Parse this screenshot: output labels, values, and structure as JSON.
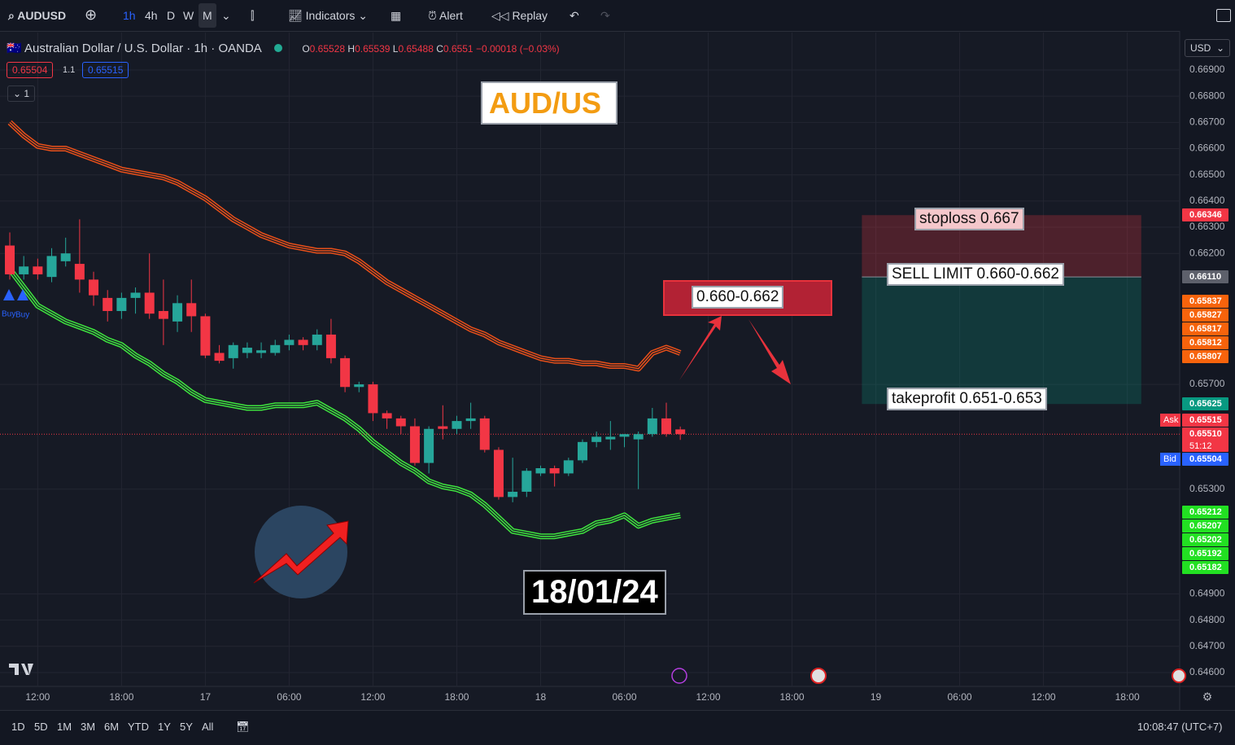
{
  "toolbar": {
    "symbol": "AUDUSD",
    "intervals": [
      "1h",
      "4h",
      "D",
      "W",
      "M"
    ],
    "indicators": "Indicators",
    "alert": "Alert",
    "replay": "Replay"
  },
  "legend": {
    "title": "Australian Dollar / U.S. Dollar · 1h · OANDA",
    "o": "O",
    "h": "H",
    "l": "L",
    "c": "C",
    "change": "−0.00018 (−0.03%)",
    "sell": "0.65504",
    "spread": "1.1",
    "buy": "0.65515",
    "collapse": "1",
    "signal_a": "Buy",
    "signal_b": "Buy"
  },
  "currency": "USD",
  "annotations": {
    "title": "AUD/US",
    "zone": "0.660-0.662",
    "stoploss": "stoploss 0.667",
    "sell_limit": "SELL LIMIT 0.660-0.662",
    "takeprofit": "takeprofit 0.651-0.653",
    "date": "18/01/24"
  },
  "price_tags": [
    {
      "text": "0.66346",
      "color": "#f23645"
    },
    {
      "text": "0.66110",
      "color": "#5d606b"
    },
    {
      "text": "0.65837",
      "color": "#f7630c"
    },
    {
      "text": "0.65827",
      "color": "#f7630c"
    },
    {
      "text": "0.65817",
      "color": "#f7630c"
    },
    {
      "text": "0.65812",
      "color": "#f7630c"
    },
    {
      "text": "0.65807",
      "color": "#f7630c"
    },
    {
      "text": "0.65625",
      "color": "#089981"
    },
    {
      "text": "0.65515",
      "color": "#f23645"
    },
    {
      "text": "0.65510",
      "color": "#f23645"
    },
    {
      "text": "0.65504",
      "color": "#2962ff"
    },
    {
      "text": "0.65212",
      "color": "#22e022"
    },
    {
      "text": "0.65207",
      "color": "#22e022"
    },
    {
      "text": "0.65202",
      "color": "#22e022"
    },
    {
      "text": "0.65192",
      "color": "#22e022"
    },
    {
      "text": "0.65182",
      "color": "#22e022"
    }
  ],
  "tag_labels": {
    "ask": "Ask",
    "bid": "Bid",
    "countdown": "51:12"
  },
  "bottom": {
    "ranges": [
      "1D",
      "5D",
      "1M",
      "3M",
      "6M",
      "YTD",
      "1Y",
      "5Y",
      "All"
    ],
    "clock": "10:08:47 (UTC+7)"
  },
  "chart_data": {
    "type": "candlestick",
    "up_color": "#26a69a",
    "down_color": "#f23645",
    "x": [
      0,
      1,
      2,
      3,
      4,
      5,
      6,
      7,
      8,
      9,
      10,
      11,
      12,
      13,
      14,
      15,
      16,
      17,
      18,
      19,
      20,
      21,
      22,
      23,
      24,
      25,
      26,
      27,
      28,
      29,
      30,
      31,
      32,
      33,
      34,
      35,
      36,
      37,
      38,
      39,
      40,
      41,
      42,
      43,
      44,
      45,
      46,
      47,
      48
    ],
    "open": [
      0.6623,
      0.6612,
      0.6615,
      0.6611,
      0.6617,
      0.6616,
      0.661,
      0.6603,
      0.6598,
      0.6603,
      0.6605,
      0.6598,
      0.6594,
      0.6601,
      0.6596,
      0.6582,
      0.658,
      0.6582,
      0.6582,
      0.6582,
      0.6585,
      0.6587,
      0.6585,
      0.6589,
      0.658,
      0.6569,
      0.657,
      0.6559,
      0.6557,
      0.6554,
      0.654,
      0.6554,
      0.6553,
      0.6556,
      0.6557,
      0.6545,
      0.6527,
      0.6529,
      0.6536,
      0.6538,
      0.6536,
      0.6541,
      0.6548,
      0.6549,
      0.655,
      0.6549,
      0.6551,
      0.6557,
      0.65528
    ],
    "high": [
      0.6628,
      0.6619,
      0.6618,
      0.6622,
      0.6626,
      0.6633,
      0.6613,
      0.6606,
      0.6605,
      0.6607,
      0.662,
      0.661,
      0.6604,
      0.661,
      0.6597,
      0.6585,
      0.6586,
      0.6586,
      0.6586,
      0.6587,
      0.6589,
      0.6588,
      0.6591,
      0.6595,
      0.6581,
      0.6571,
      0.6571,
      0.656,
      0.6558,
      0.6557,
      0.6554,
      0.6562,
      0.6558,
      0.6563,
      0.6558,
      0.6546,
      0.6542,
      0.6538,
      0.6539,
      0.6539,
      0.6542,
      0.6549,
      0.6552,
      0.6556,
      0.6551,
      0.6552,
      0.6561,
      0.6563,
      0.65539
    ],
    "low": [
      0.661,
      0.661,
      0.661,
      0.6609,
      0.6615,
      0.6605,
      0.66,
      0.6594,
      0.6595,
      0.6597,
      0.6595,
      0.6585,
      0.659,
      0.659,
      0.658,
      0.6578,
      0.6576,
      0.658,
      0.658,
      0.6581,
      0.6583,
      0.6583,
      0.6583,
      0.6578,
      0.6567,
      0.6567,
      0.6556,
      0.6553,
      0.6551,
      0.6539,
      0.6536,
      0.6549,
      0.6551,
      0.6553,
      0.6544,
      0.6526,
      0.6525,
      0.6527,
      0.6535,
      0.6531,
      0.6535,
      0.654,
      0.6546,
      0.6545,
      0.6546,
      0.653,
      0.655,
      0.655,
      0.65488
    ],
    "close": [
      0.6612,
      0.6615,
      0.6612,
      0.6619,
      0.662,
      0.661,
      0.6604,
      0.6598,
      0.6603,
      0.6605,
      0.6597,
      0.6595,
      0.6601,
      0.6596,
      0.6581,
      0.6579,
      0.6585,
      0.6584,
      0.6583,
      0.6585,
      0.6587,
      0.6585,
      0.6589,
      0.658,
      0.6569,
      0.657,
      0.6559,
      0.6557,
      0.6554,
      0.654,
      0.6553,
      0.6553,
      0.6556,
      0.6557,
      0.6545,
      0.6527,
      0.6529,
      0.6537,
      0.6538,
      0.6536,
      0.6541,
      0.6548,
      0.655,
      0.655,
      0.6551,
      0.6551,
      0.6557,
      0.6551,
      0.6551
    ],
    "lines": [
      {
        "color": "#e8501a",
        "values": [
          0.667,
          0.6665,
          0.6661,
          0.666,
          0.666,
          0.6658,
          0.6656,
          0.6654,
          0.6652,
          0.6651,
          0.665,
          0.6649,
          0.6647,
          0.6644,
          0.6641,
          0.6637,
          0.6633,
          0.663,
          0.6627,
          0.6625,
          0.6623,
          0.6622,
          0.6621,
          0.6621,
          0.662,
          0.6617,
          0.6613,
          0.6609,
          0.6606,
          0.6603,
          0.66,
          0.6597,
          0.6594,
          0.6591,
          0.6589,
          0.6586,
          0.6584,
          0.6582,
          0.658,
          0.6579,
          0.6579,
          0.6578,
          0.6578,
          0.6577,
          0.6577,
          0.6576,
          0.6582,
          0.6584,
          0.6582
        ]
      },
      {
        "color": "#3fe33f",
        "values": [
          0.6614,
          0.6607,
          0.66,
          0.6597,
          0.6594,
          0.6592,
          0.659,
          0.6587,
          0.6585,
          0.6581,
          0.6578,
          0.6574,
          0.6571,
          0.6567,
          0.6564,
          0.6563,
          0.6562,
          0.6561,
          0.6561,
          0.6562,
          0.6562,
          0.6562,
          0.6563,
          0.656,
          0.6557,
          0.6553,
          0.6548,
          0.6544,
          0.654,
          0.6537,
          0.6533,
          0.6531,
          0.653,
          0.6528,
          0.6524,
          0.6519,
          0.6514,
          0.6513,
          0.6512,
          0.6512,
          0.6513,
          0.6514,
          0.6517,
          0.6518,
          0.652,
          0.6516,
          0.6518,
          0.6519,
          0.652
        ]
      }
    ],
    "last_price": 0.6551,
    "position": {
      "stop": 0.66346,
      "entry": 0.6611,
      "target": 0.65625,
      "x": [
        61,
        81
      ]
    },
    "xlim": [
      -0.7,
      83.75
    ],
    "ylim": [
      0.64547,
      0.67043
    ],
    "xticks": [
      {
        "value": 2,
        "label": "12:00"
      },
      {
        "value": 8,
        "label": "18:00"
      },
      {
        "value": 14,
        "label": "17"
      },
      {
        "value": 20,
        "label": "06:00"
      },
      {
        "value": 26,
        "label": "12:00"
      },
      {
        "value": 32,
        "label": "18:00"
      },
      {
        "value": 38,
        "label": "18"
      },
      {
        "value": 44,
        "label": "06:00"
      },
      {
        "value": 50,
        "label": "12:00"
      },
      {
        "value": 56,
        "label": "18:00"
      },
      {
        "value": 62,
        "label": "19"
      },
      {
        "value": 68,
        "label": "06:00"
      },
      {
        "value": 74,
        "label": "12:00"
      },
      {
        "value": 80,
        "label": "18:00"
      }
    ],
    "yticks": [
      {
        "value": 0.669,
        "label": "0.66900"
      },
      {
        "value": 0.668,
        "label": "0.66800"
      },
      {
        "value": 0.667,
        "label": "0.66700"
      },
      {
        "value": 0.666,
        "label": "0.66600"
      },
      {
        "value": 0.665,
        "label": "0.66500"
      },
      {
        "value": 0.664,
        "label": "0.66400"
      },
      {
        "value": 0.663,
        "label": "0.66300"
      },
      {
        "value": 0.662,
        "label": "0.66200"
      },
      {
        "value": 0.657,
        "label": "0.65700"
      },
      {
        "value": 0.653,
        "label": "0.65300"
      },
      {
        "value": 0.649,
        "label": "0.64900"
      },
      {
        "value": 0.648,
        "label": "0.64800"
      },
      {
        "value": 0.647,
        "label": "0.64700"
      },
      {
        "value": 0.646,
        "label": "0.64600"
      }
    ],
    "grid": true
  }
}
